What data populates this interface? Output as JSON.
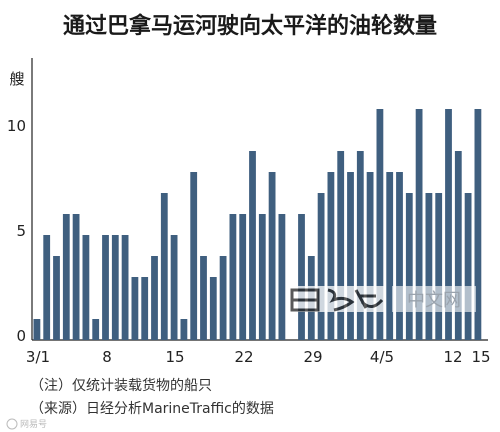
{
  "chart_data": {
    "type": "bar",
    "title": "通过巴拿马运河驶向太平洋的油轮数量",
    "ylabel": "艘",
    "ylim": [
      0,
      13
    ],
    "yticks": [
      "0",
      "5",
      "10"
    ],
    "xtick_labels": [
      "3/1",
      "8",
      "15",
      "22",
      "29",
      "4/5",
      "12",
      "15"
    ],
    "grid": false,
    "bar_color": "#3f5f7f",
    "values": [
      1,
      5,
      4,
      6,
      6,
      5,
      1,
      5,
      5,
      5,
      3,
      3,
      4,
      7,
      5,
      1,
      8,
      4,
      3,
      4,
      6,
      6,
      9,
      6,
      8,
      6,
      0,
      6,
      4,
      7,
      8,
      9,
      8,
      9,
      8,
      11,
      8,
      8,
      7,
      11,
      7,
      7,
      11,
      9,
      7,
      11
    ]
  },
  "notes": {
    "line1": "（注）仅统计装载货物的船只",
    "line2": "（来源）日经分析MarineTraffic的数据"
  },
  "watermark": {
    "right_text": "中文网",
    "corner_text": "网易号"
  }
}
